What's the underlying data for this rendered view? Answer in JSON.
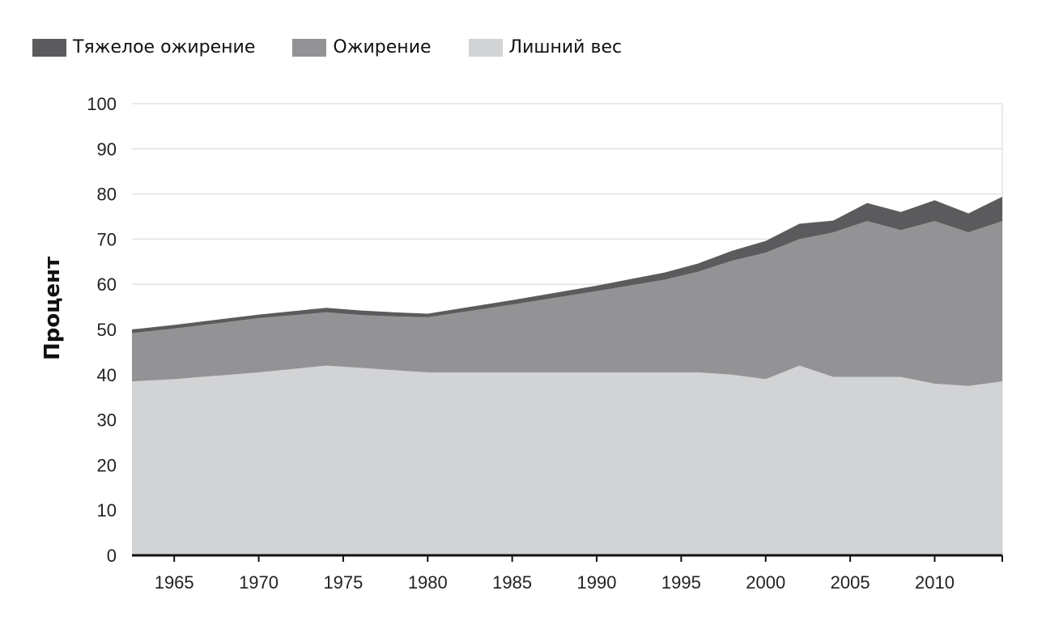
{
  "chart_data": {
    "type": "area",
    "stacked": true,
    "title": "",
    "xlabel": "",
    "ylabel": "Процент",
    "xlim": [
      1962.5,
      2014
    ],
    "ylim": [
      0,
      100
    ],
    "y_ticks": [
      0,
      10,
      20,
      30,
      40,
      50,
      60,
      70,
      80,
      90,
      100
    ],
    "x_ticks": [
      1965,
      1970,
      1975,
      1980,
      1985,
      1990,
      1995,
      2000,
      2005,
      2010
    ],
    "grid": true,
    "legend_position": "top-left",
    "x": [
      1962.5,
      1965,
      1970,
      1974,
      1976,
      1978,
      1980,
      1985,
      1990,
      1994,
      1996,
      1998,
      2000,
      2002,
      2004,
      2006,
      2008,
      2010,
      2012,
      2014
    ],
    "series": [
      {
        "name": "Тяжелое ожирение",
        "color": "#5b5b5d",
        "values": [
          0.8,
          0.8,
          0.8,
          1.0,
          1.0,
          0.9,
          0.8,
          1.0,
          1.2,
          1.6,
          1.8,
          2.2,
          2.6,
          3.4,
          2.6,
          4.0,
          4.0,
          4.6,
          4.2,
          5.4
        ]
      },
      {
        "name": "Ожирение",
        "color": "#939395",
        "values": [
          10.7,
          11.2,
          12.0,
          11.8,
          11.7,
          11.9,
          12.2,
          15.0,
          18.0,
          20.5,
          22.3,
          25.2,
          28.0,
          28.0,
          32.0,
          34.5,
          32.5,
          36.0,
          34.0,
          35.5
        ]
      },
      {
        "name": "Лишний вес",
        "color": "#d2d3d5",
        "values": [
          38.5,
          39.0,
          40.5,
          42.0,
          41.5,
          41.0,
          40.5,
          40.5,
          40.5,
          40.5,
          40.5,
          40.0,
          39.0,
          42.0,
          39.5,
          39.5,
          39.5,
          38.0,
          37.5,
          38.5
        ]
      }
    ]
  }
}
